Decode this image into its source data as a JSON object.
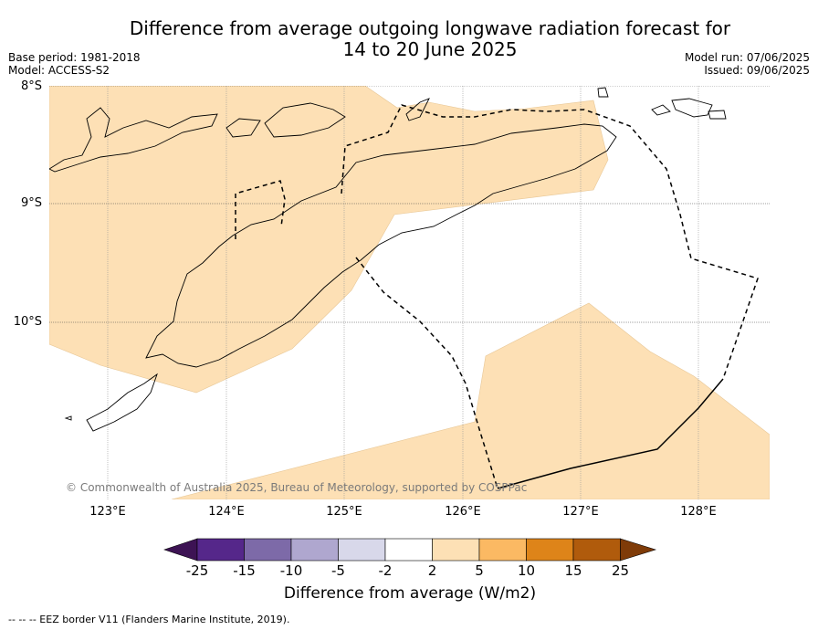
{
  "title_line1": "Difference from average outgoing longwave radiation forecast for",
  "title_line2": "14 to 20 June 2025",
  "meta": {
    "base_period": "Base period: 1981-2018",
    "model": "Model: ACCESS-S2",
    "model_run": "Model run: 07/06/2025",
    "issued": "Issued: 09/06/2025"
  },
  "lat_labels": [
    "8°S",
    "9°S",
    "10°S"
  ],
  "lon_labels": [
    "123°E",
    "124°E",
    "125°E",
    "126°E",
    "127°E",
    "128°E"
  ],
  "copyright": "© Commonwealth of Australia 2025, Bureau of Meteorology, supported by COSPPac",
  "colorbar": {
    "ticks": [
      "-25",
      "-15",
      "-10",
      "-5",
      "-2",
      "2",
      "5",
      "10",
      "15",
      "25"
    ],
    "colors": [
      "#3d1354",
      "#55278a",
      "#7d6aa8",
      "#afa7cf",
      "#d8d8ea",
      "#ffffff",
      "#fde0b5",
      "#fbb963",
      "#de8419",
      "#b05b0c",
      "#7f3b08"
    ],
    "title": "Difference from average (W/m2)"
  },
  "footnote": "--  --  -- EEZ border V11 (Flanders Marine Institute, 2019).",
  "map_colors": {
    "anomaly_fill": "#fde0b5",
    "coast": "#000000"
  }
}
